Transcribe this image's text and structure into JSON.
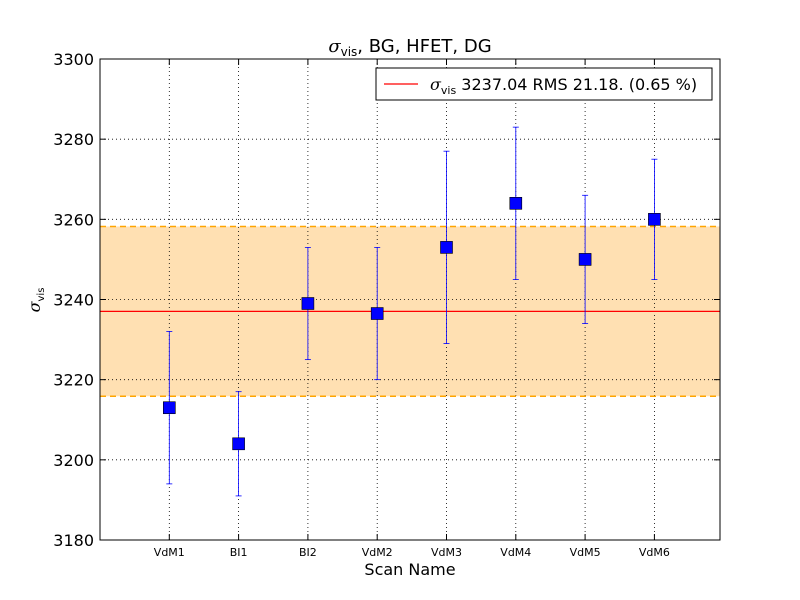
{
  "chart_data": {
    "type": "scatter",
    "title_symbol": "σ",
    "title_subscript": "vis",
    "title_rest": ", BG, HFET, DG",
    "xlabel": "Scan Name",
    "ylabel_symbol": "σ",
    "ylabel_subscript": "vis",
    "categories": [
      "VdM1",
      "BI1",
      "BI2",
      "VdM2",
      "VdM3",
      "VdM4",
      "VdM5",
      "VdM6"
    ],
    "values": [
      3213,
      3204,
      3239,
      3236.5,
      3253,
      3264,
      3250,
      3260
    ],
    "errors": [
      19,
      13,
      14,
      16.5,
      24,
      19,
      16,
      15
    ],
    "ylim": [
      3180,
      3300
    ],
    "yticks": [
      3180,
      3200,
      3220,
      3240,
      3260,
      3280,
      3300
    ],
    "mean": 3237.04,
    "rms": 21.18,
    "band": [
      3215.86,
      3258.22
    ],
    "grid": true,
    "legend": {
      "position": "top-right",
      "symbol": "σ",
      "subscript": "vis",
      "text": " 3237.04 RMS 21.18. (0.65 %)"
    },
    "colors": {
      "marker": "#0000ff",
      "errorbar": "#0000ff",
      "mean_line": "#ff0000",
      "band_fill": "#ffe0b2",
      "band_edge": "#ffa500"
    }
  }
}
